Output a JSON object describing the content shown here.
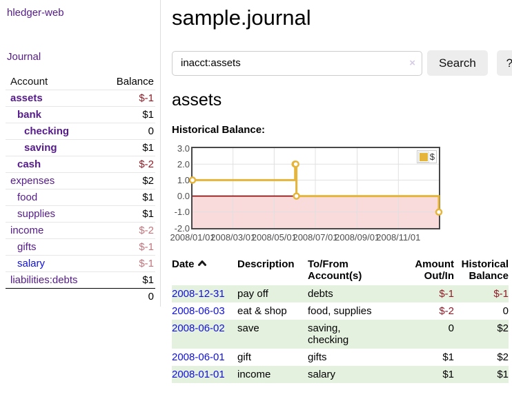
{
  "app": {
    "brand": "hledger-web",
    "nav_journal": "Journal"
  },
  "sidebar": {
    "accounts_table": {
      "col_account": "Account",
      "col_balance": "Balance",
      "rows": [
        {
          "name": "assets",
          "depth": 1,
          "bold": true,
          "balance": "$-1",
          "balance_color": "negative"
        },
        {
          "name": "bank",
          "depth": 2,
          "bold": true,
          "balance": "$1",
          "balance_color": "normal"
        },
        {
          "name": "checking",
          "depth": 3,
          "bold": true,
          "balance": "0",
          "balance_color": "normal"
        },
        {
          "name": "saving",
          "depth": 3,
          "bold": true,
          "balance": "$1",
          "balance_color": "normal"
        },
        {
          "name": "cash",
          "depth": 2,
          "bold": true,
          "balance": "$-2",
          "balance_color": "negative"
        },
        {
          "name": "expenses",
          "depth": 1,
          "bold": false,
          "balance": "$2",
          "balance_color": "normal"
        },
        {
          "name": "food",
          "depth": 2,
          "bold": false,
          "balance": "$1",
          "balance_color": "normal"
        },
        {
          "name": "supplies",
          "depth": 2,
          "bold": false,
          "balance": "$1",
          "balance_color": "normal"
        },
        {
          "name": "income",
          "depth": 1,
          "bold": false,
          "balance": "$-2",
          "balance_color": "negative-light"
        },
        {
          "name": "gifts",
          "depth": 2,
          "bold": false,
          "balance": "$-1",
          "balance_color": "negative-light"
        },
        {
          "name": "salary",
          "depth": 2,
          "bold": false,
          "balance": "$-1",
          "balance_color": "negative-light",
          "link_color": "blue"
        },
        {
          "name": "liabilities:debts",
          "depth": 1,
          "bold": false,
          "balance": "$1",
          "balance_color": "normal"
        }
      ],
      "total": "0"
    }
  },
  "header": {
    "title": "sample.journal"
  },
  "search": {
    "value": "inacct:assets",
    "clear_icon": "×",
    "button": "Search",
    "help_button": "?"
  },
  "account_page": {
    "heading": "assets",
    "chart_label": "Historical Balance:"
  },
  "chart_data": {
    "type": "line",
    "step": true,
    "title": "Historical Balance",
    "legend": [
      {
        "label": "$",
        "color": "#e5b43a"
      }
    ],
    "legend_position": "top-right",
    "x_type": "date",
    "x_range": [
      "2008-01-01",
      "2008-12-31"
    ],
    "ylim": [
      -2.0,
      3.0
    ],
    "y_ticks": [
      3.0,
      2.0,
      1.0,
      0.0,
      -1.0,
      -2.0
    ],
    "y_tick_labels": [
      "3.0",
      "2.0",
      "1.0",
      "0.0",
      "-1.0",
      "-2.0"
    ],
    "x_tick_dates": [
      "2008-01-01",
      "2008-03-01",
      "2008-05-01",
      "2008-07-01",
      "2008-09-01",
      "2008-11-01"
    ],
    "x_tick_labels": [
      "2008/01/01",
      "2008/03/01",
      "2008/05/01",
      "2008/07/01",
      "2008/09/01",
      "2008/11/01"
    ],
    "points": [
      {
        "date": "2008-01-01",
        "value": 1
      },
      {
        "date": "2008-06-01",
        "value": 2
      },
      {
        "date": "2008-06-02",
        "value": 2
      },
      {
        "date": "2008-06-03",
        "value": 0
      },
      {
        "date": "2008-12-31",
        "value": -1
      }
    ],
    "grid": true,
    "negative_region_fill": "#fadbdb",
    "zero_line_color": "#8b0000"
  },
  "transactions": {
    "headers": {
      "date": "Date",
      "description": "Description",
      "accounts": "To/From Account(s)",
      "amount": "Amount Out/In",
      "balance": "Historical Balance"
    },
    "sort": "date-ascending",
    "rows": [
      {
        "date": "2008-12-31",
        "description": "pay off",
        "accounts": "debts",
        "amount": "$-1",
        "amount_color": "negative",
        "balance": "$-1",
        "balance_color": "negative"
      },
      {
        "date": "2008-06-03",
        "description": "eat & shop",
        "accounts": "food, supplies",
        "amount": "$-2",
        "amount_color": "negative",
        "balance": "0",
        "balance_color": "normal"
      },
      {
        "date": "2008-06-02",
        "description": "save",
        "accounts": "saving, checking",
        "amount": "0",
        "amount_color": "normal",
        "balance": "$2",
        "balance_color": "normal"
      },
      {
        "date": "2008-06-01",
        "description": "gift",
        "accounts": "gifts",
        "amount": "$1",
        "amount_color": "normal",
        "balance": "$2",
        "balance_color": "normal"
      },
      {
        "date": "2008-01-01",
        "description": "income",
        "accounts": "salary",
        "amount": "$1",
        "amount_color": "normal",
        "balance": "$1",
        "balance_color": "normal"
      }
    ]
  },
  "colors": {
    "purple": "#551a8b",
    "link-blue": "#0f0fe0",
    "neg-dark": "#8e1c27",
    "neg-light": "#c2757c",
    "gold": "#e5b43a",
    "stripe-green": "#e5f1df",
    "pink-fill": "#fadbdb",
    "zero-line": "#8b0000",
    "grid-line": "#e0e0e0",
    "plot-border": "#474747",
    "tick": "#4d4d4d",
    "divider": "#dddddd",
    "btn-bg": "#ededed",
    "clear-x": "#d6cbe4"
  }
}
